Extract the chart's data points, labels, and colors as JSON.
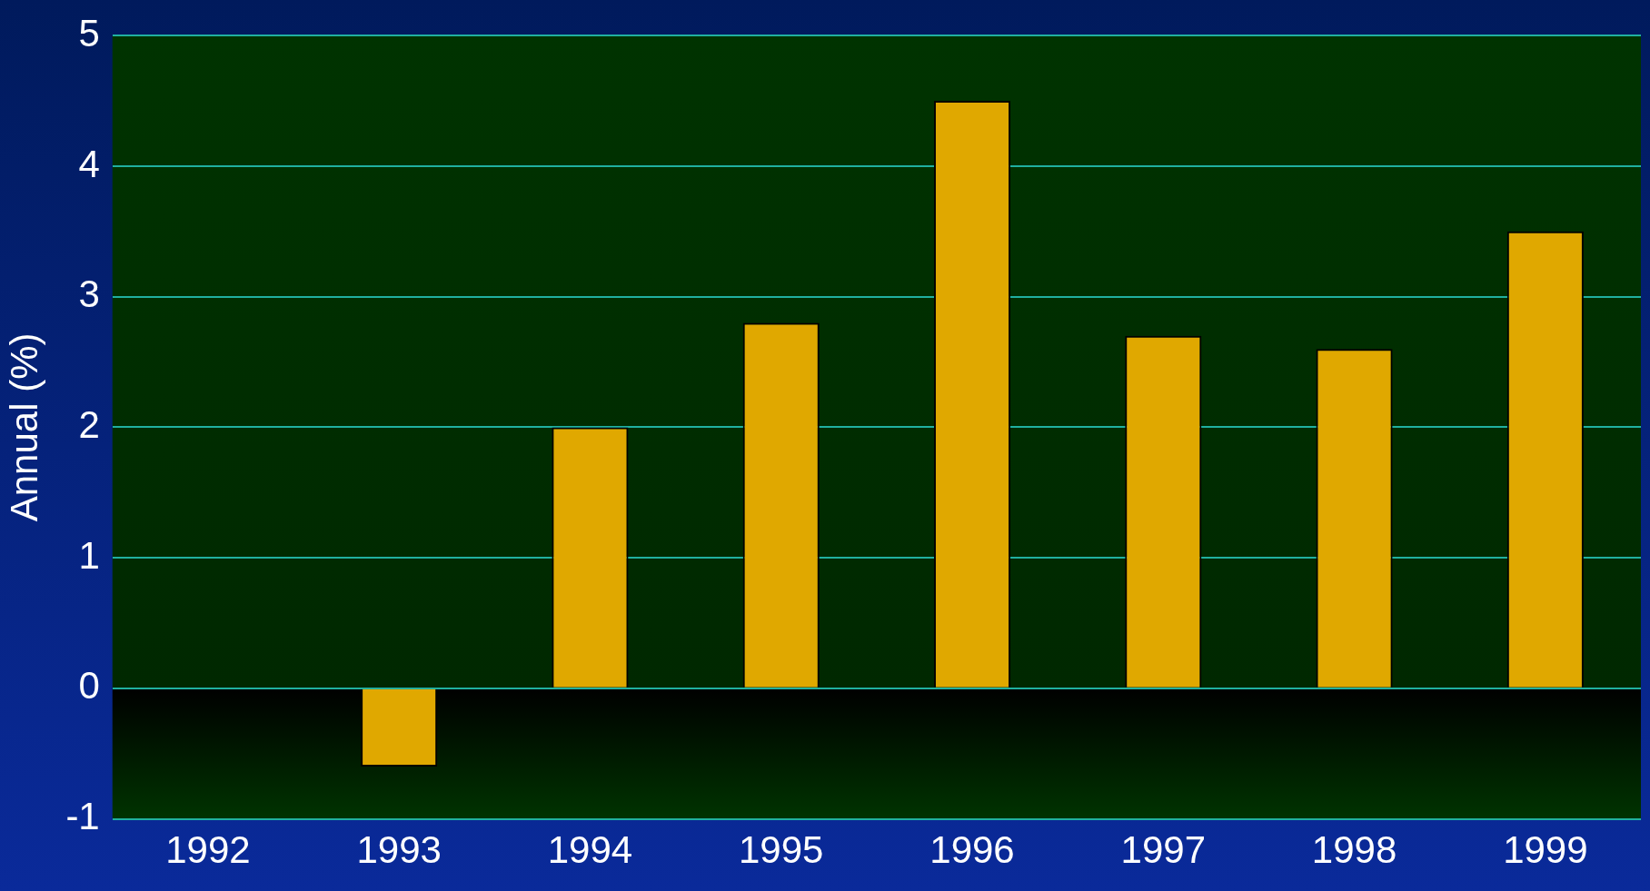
{
  "chart_data": {
    "type": "bar",
    "ylabel": "Annual (%)",
    "categories": [
      "1992",
      "1993",
      "1994",
      "1995",
      "1996",
      "1997",
      "1998",
      "1999"
    ],
    "values": [
      0,
      -0.6,
      2.0,
      2.8,
      4.5,
      2.7,
      2.6,
      3.5
    ],
    "color": "#e0a800",
    "ylim": [
      -1,
      5
    ],
    "yticks": [
      -1,
      0,
      1,
      2,
      3,
      4,
      5
    ],
    "grid": "y",
    "legend": false
  }
}
